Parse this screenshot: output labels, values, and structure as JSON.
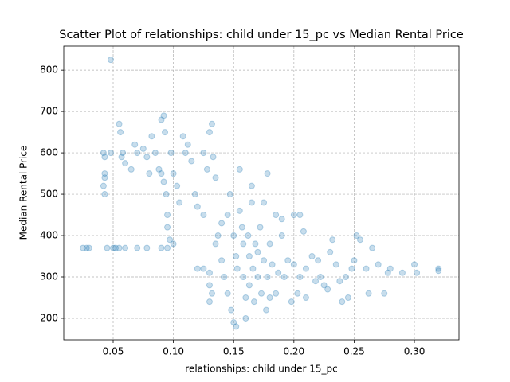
{
  "chart_data": {
    "type": "scatter",
    "title": "Scatter Plot of relationships: child under 15_pc vs Median Rental Price",
    "x_label": "relationships: child under 15_pc",
    "y_label": "Median Rental Price",
    "color": "#1f77b4",
    "grid": true,
    "xlim": [
      0.009,
      0.337
    ],
    "ylim": [
      148,
      858
    ],
    "xticks": [
      0.05,
      {
        "value": 0.1,
        "label": "0.10"
      },
      0.15,
      {
        "value": 0.2,
        "label": "0.20"
      },
      0.25,
      {
        "value": 0.3,
        "label": "0.30"
      }
    ],
    "yticks": [
      200,
      300,
      400,
      500,
      600,
      700,
      800
    ],
    "x": [
      0.025,
      0.028,
      0.03,
      0.045,
      0.05,
      0.052,
      0.055,
      0.06,
      0.07,
      0.078,
      0.09,
      0.095,
      0.048,
      0.042,
      0.043,
      0.043,
      0.043,
      0.043,
      0.042,
      0.048,
      0.055,
      0.056,
      0.058,
      0.057,
      0.06,
      0.065,
      0.068,
      0.07,
      0.075,
      0.078,
      0.08,
      0.082,
      0.085,
      0.088,
      0.09,
      0.092,
      0.093,
      0.09,
      0.092,
      0.094,
      0.095,
      0.095,
      0.097,
      0.1,
      0.098,
      0.1,
      0.103,
      0.105,
      0.108,
      0.11,
      0.112,
      0.115,
      0.118,
      0.12,
      0.125,
      0.125,
      0.128,
      0.13,
      0.132,
      0.133,
      0.135,
      0.12,
      0.125,
      0.13,
      0.13,
      0.13,
      0.132,
      0.135,
      0.137,
      0.14,
      0.14,
      0.142,
      0.145,
      0.145,
      0.147,
      0.148,
      0.15,
      0.152,
      0.15,
      0.152,
      0.153,
      0.155,
      0.155,
      0.157,
      0.158,
      0.158,
      0.16,
      0.16,
      0.162,
      0.163,
      0.163,
      0.165,
      0.165,
      0.166,
      0.167,
      0.168,
      0.17,
      0.17,
      0.172,
      0.173,
      0.175,
      0.175,
      0.177,
      0.178,
      0.178,
      0.18,
      0.18,
      0.182,
      0.185,
      0.185,
      0.187,
      0.19,
      0.19,
      0.192,
      0.195,
      0.198,
      0.2,
      0.2,
      0.203,
      0.205,
      0.205,
      0.208,
      0.21,
      0.21,
      0.215,
      0.218,
      0.22,
      0.222,
      0.225,
      0.228,
      0.23,
      0.232,
      0.235,
      0.238,
      0.24,
      0.243,
      0.245,
      0.248,
      0.25,
      0.252,
      0.255,
      0.26,
      0.262,
      0.265,
      0.27,
      0.275,
      0.278,
      0.28,
      0.29,
      0.3,
      0.302,
      0.32,
      0.32
    ],
    "y": [
      370,
      370,
      370,
      370,
      370,
      370,
      370,
      370,
      370,
      370,
      370,
      370,
      825,
      600,
      590,
      550,
      540,
      500,
      520,
      600,
      670,
      650,
      600,
      590,
      575,
      560,
      620,
      600,
      610,
      590,
      550,
      640,
      600,
      560,
      680,
      690,
      650,
      550,
      530,
      500,
      450,
      420,
      390,
      380,
      600,
      550,
      520,
      480,
      640,
      600,
      620,
      580,
      500,
      470,
      450,
      600,
      560,
      650,
      670,
      590,
      540,
      320,
      320,
      310,
      280,
      240,
      260,
      380,
      400,
      430,
      340,
      300,
      260,
      450,
      500,
      220,
      190,
      180,
      400,
      350,
      320,
      560,
      460,
      420,
      380,
      300,
      250,
      200,
      400,
      350,
      280,
      480,
      520,
      320,
      240,
      380,
      300,
      360,
      420,
      260,
      340,
      480,
      220,
      550,
      300,
      250,
      380,
      330,
      450,
      260,
      310,
      400,
      440,
      300,
      340,
      240,
      330,
      450,
      260,
      450,
      300,
      410,
      320,
      250,
      350,
      290,
      340,
      300,
      280,
      270,
      360,
      390,
      330,
      290,
      240,
      300,
      250,
      320,
      340,
      400,
      390,
      320,
      260,
      370,
      330,
      260,
      310,
      320,
      310,
      330,
      310,
      320,
      315
    ]
  }
}
